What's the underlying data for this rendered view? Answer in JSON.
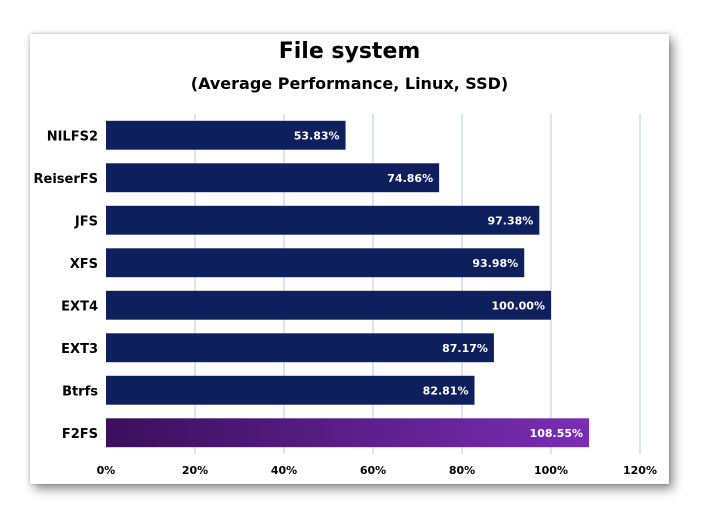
{
  "chart_data": {
    "type": "bar",
    "orientation": "horizontal",
    "title": "File system",
    "subtitle": "(Average Performance, Linux, SSD)",
    "categories": [
      "NILFS2",
      "ReiserFS",
      "JFS",
      "XFS",
      "EXT4",
      "EXT3",
      "Btrfs",
      "F2FS"
    ],
    "values": [
      53.83,
      74.86,
      97.38,
      93.98,
      100.0,
      87.17,
      82.81,
      108.55
    ],
    "value_labels": [
      "53.83%",
      "74.86%",
      "97.38%",
      "93.98%",
      "100.00%",
      "87.17%",
      "82.81%",
      "108.55%"
    ],
    "xlim": [
      0,
      120
    ],
    "x_ticks": [
      0,
      20,
      40,
      60,
      80,
      100,
      120
    ],
    "x_tick_labels": [
      "0%",
      "20%",
      "40%",
      "60%",
      "80%",
      "100%",
      "120%"
    ],
    "grid": "vertical",
    "legend": "none",
    "colors": {
      "default_bar": "#0d1f5c",
      "highlight_bar_start": "#3a0f5c",
      "highlight_bar_end": "#7a2db5",
      "gridline": "#b9cde0"
    },
    "highlight_category": "F2FS"
  }
}
